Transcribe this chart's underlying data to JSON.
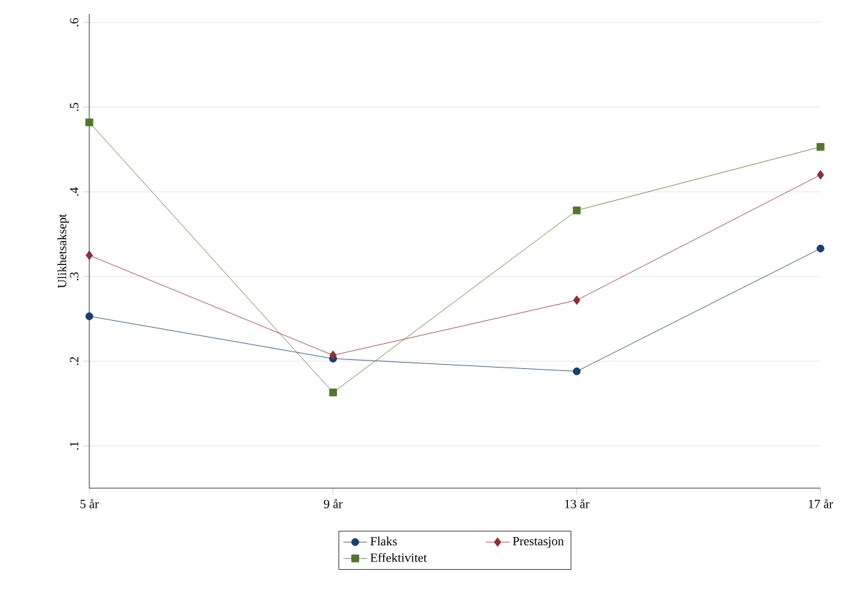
{
  "chart_data": {
    "type": "line",
    "ylabel": "Ulikhetsaksept",
    "x": [
      5,
      9,
      13,
      17
    ],
    "xlim": [
      5,
      17
    ],
    "xticks": [
      {
        "value": 5,
        "label": "5 år"
      },
      {
        "value": 9,
        "label": "9 år"
      },
      {
        "value": 13,
        "label": "13 år"
      },
      {
        "value": 17,
        "label": "17 år"
      }
    ],
    "ylim": [
      0.05,
      0.61
    ],
    "yticks": [
      {
        "value": 0.1,
        "label": ".1"
      },
      {
        "value": 0.2,
        "label": ".2"
      },
      {
        "value": 0.3,
        "label": ".3"
      },
      {
        "value": 0.4,
        "label": ".4"
      },
      {
        "value": 0.5,
        "label": ".5"
      },
      {
        "value": 0.6,
        "label": ".6"
      }
    ],
    "grid": "y",
    "legend": "bottom",
    "line_style": "solid",
    "series": [
      {
        "name": "Flaks",
        "color": "#1a3f6b",
        "marker": "circle",
        "values": [
          0.253,
          0.203,
          0.188,
          0.333
        ]
      },
      {
        "name": "Prestasjon",
        "color": "#8b2e3a",
        "marker": "diamond",
        "values": [
          0.325,
          0.207,
          0.272,
          0.42
        ]
      },
      {
        "name": "Effektivitet",
        "color": "#55752f",
        "marker": "square",
        "values": [
          0.482,
          0.163,
          0.378,
          0.453
        ]
      }
    ]
  }
}
